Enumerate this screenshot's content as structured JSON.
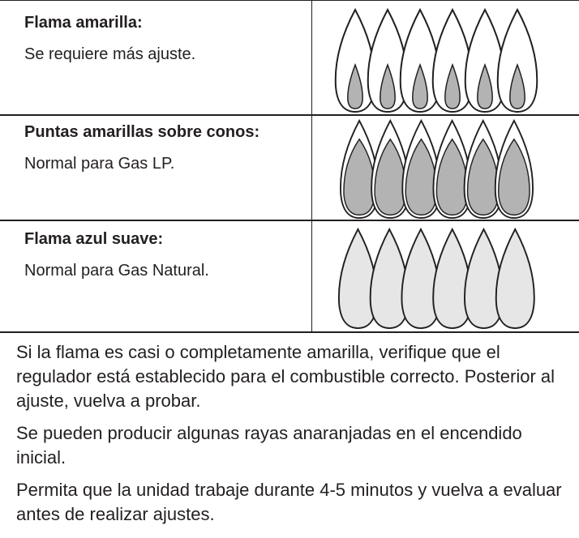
{
  "table": {
    "rows": [
      {
        "title": "Flama amarilla:",
        "description": "Se requiere más ajuste."
      },
      {
        "title": "Puntas amarillas sobre conos:",
        "description": "Normal para Gas LP."
      },
      {
        "title": "Flama azul suave:",
        "description": "Normal para Gas Natural."
      }
    ]
  },
  "notes": [
    "Si la flama es casi o completamente amarilla, verifique que el regulador está establecido para el combustible correcto. Posterior al ajuste, vuelva a probar.",
    "Se pueden producir algunas rayas anaranjadas en el encendido inicial.",
    "Permita que la unidad trabaje durante 4-5 minutos y vuelva a evaluar antes de realizar ajustes."
  ]
}
